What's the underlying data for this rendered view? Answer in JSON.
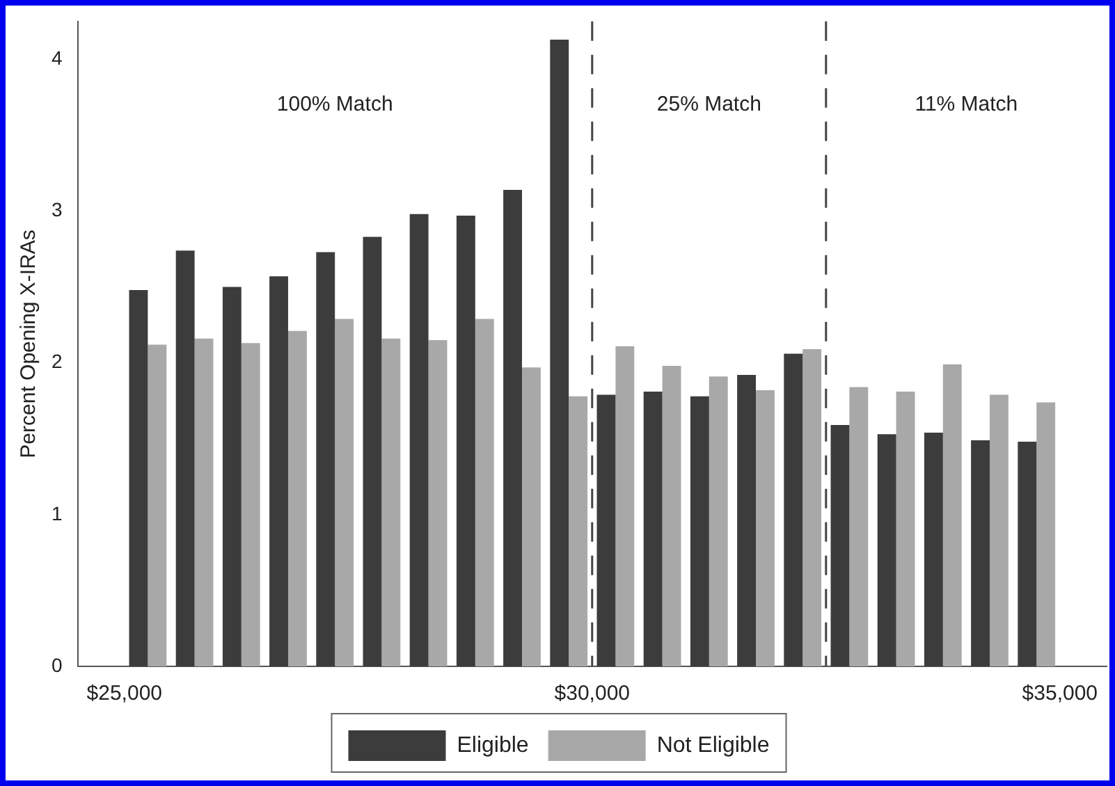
{
  "chart_data": {
    "type": "bar",
    "ylabel": "Percent Opening X-IRAs",
    "x": [
      25250,
      25750,
      26250,
      26750,
      27250,
      27750,
      28250,
      28750,
      29250,
      29750,
      30250,
      30750,
      31250,
      31750,
      32250,
      32750,
      33250,
      33750,
      34250,
      34750
    ],
    "series": [
      {
        "name": "Eligible",
        "color": "#3c3c3c",
        "values": [
          2.48,
          2.74,
          2.5,
          2.57,
          2.73,
          2.83,
          2.98,
          2.97,
          3.14,
          4.13,
          1.79,
          1.81,
          1.78,
          1.92,
          2.06,
          1.59,
          1.53,
          1.54,
          1.49,
          1.48
        ]
      },
      {
        "name": "Not Eligible",
        "color": "#a8a8a8",
        "values": [
          2.12,
          2.16,
          2.13,
          2.21,
          2.29,
          2.16,
          2.15,
          2.29,
          1.97,
          1.78,
          2.11,
          1.98,
          1.91,
          1.82,
          2.09,
          1.84,
          1.81,
          1.99,
          1.79,
          1.74
        ]
      }
    ],
    "xlim": [
      24500,
      35500
    ],
    "xticks": [
      {
        "value": 25000,
        "label": "$25,000"
      },
      {
        "value": 30000,
        "label": "$30,000"
      },
      {
        "value": 35000,
        "label": "$35,000"
      }
    ],
    "ylim": [
      0,
      4.25
    ],
    "yticks": [
      0,
      1,
      2,
      3,
      4
    ],
    "ref_lines": [
      {
        "axis": "x",
        "value": 30000,
        "color": "#444444",
        "line_style": "dashed"
      },
      {
        "axis": "x",
        "value": 32500,
        "color": "#444444",
        "line_style": "dashed"
      }
    ],
    "annotations": [
      "100% Match",
      "25% Match",
      "11% Match"
    ],
    "grid": false,
    "legend": "bottom"
  }
}
